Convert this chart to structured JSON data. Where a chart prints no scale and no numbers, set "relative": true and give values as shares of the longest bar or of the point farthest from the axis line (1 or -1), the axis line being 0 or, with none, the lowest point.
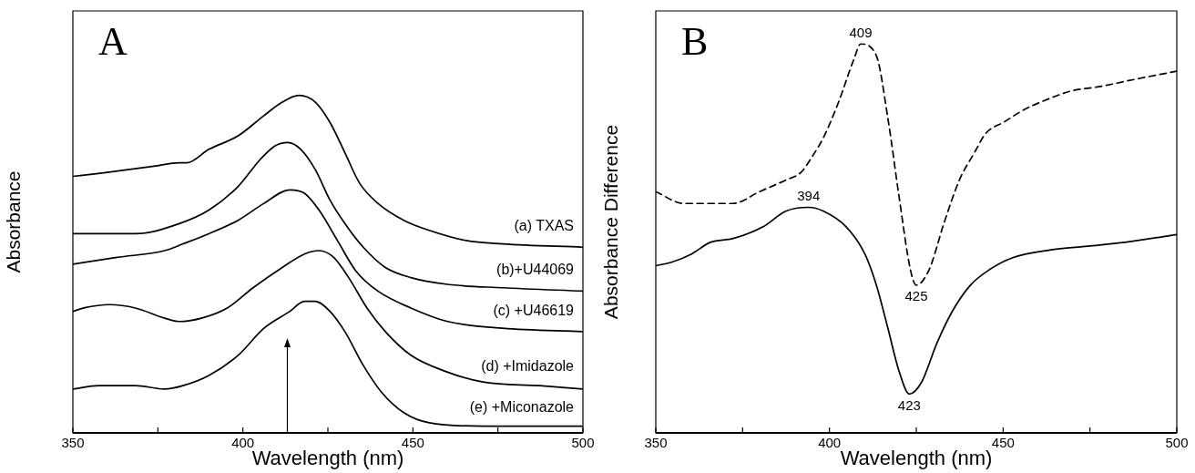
{
  "chart_data": [
    {
      "type": "line",
      "title": "A",
      "xlabel": "Wavelength (nm)",
      "ylabel": "Absorbance",
      "relative": true,
      "xlim": [
        350,
        500
      ],
      "xticks": [
        350,
        {
          "value": 375,
          "label": null
        },
        400,
        {
          "value": 425,
          "label": null
        },
        450,
        {
          "value": 475,
          "label": null
        },
        500
      ],
      "grid": false,
      "legend": false,
      "marker": "none",
      "line_style": "solid",
      "ref_lines": [
        {
          "axis": "x",
          "value": 413
        }
      ],
      "series": [
        {
          "name": "(a) TXAS",
          "color": "#000000",
          "x": [
            350,
            358.6,
            373.8,
            381.3,
            383.5,
            390,
            398.6,
            406.2,
            411.6,
            416.5,
            421.3,
            425.6,
            430,
            434.3,
            439.7,
            447.3,
            454.8,
            465.6,
            476.4,
            500
          ],
          "values": [
            0.76,
            0.77,
            0.79,
            0.8,
            0.8,
            0.84,
            0.88,
            0.94,
            0.98,
            1,
            0.98,
            0.92,
            0.83,
            0.74,
            0.68,
            0.63,
            0.6,
            0.57,
            0.56,
            0.55
          ]
        },
        {
          "name": "(b)+U44069",
          "color": "#000000",
          "x": [
            350,
            368.4,
            381.3,
            390,
            398.6,
            405.1,
            409.4,
            413.2,
            417,
            421.3,
            425.6,
            430,
            435.4,
            441.9,
            449.4,
            460.2,
            476.4,
            500
          ],
          "values": [
            0.59,
            0.59,
            0.62,
            0.66,
            0.73,
            0.81,
            0.85,
            0.86,
            0.84,
            0.78,
            0.69,
            0.62,
            0.55,
            0.49,
            0.46,
            0.44,
            0.43,
            0.42
          ]
        },
        {
          "name": "(c) +U46619",
          "color": "#000000",
          "x": [
            350,
            363,
            377,
            382.4,
            390,
            398.6,
            406.2,
            413.8,
            418.1,
            422.4,
            427.8,
            433.2,
            439.7,
            449.4,
            460.2,
            476.4,
            500
          ],
          "values": [
            0.5,
            0.52,
            0.54,
            0.56,
            0.59,
            0.63,
            0.68,
            0.72,
            0.71,
            0.66,
            0.57,
            0.48,
            0.42,
            0.37,
            0.33,
            0.31,
            0.3
          ]
        },
        {
          "name": "(d) +Imidazole",
          "color": "#000000",
          "x": [
            350,
            353.2,
            360.8,
            368.4,
            377,
            381.3,
            387.8,
            395.4,
            403,
            411.6,
            418.1,
            422.4,
            426.7,
            431.1,
            436.5,
            441.9,
            449.4,
            460.2,
            471,
            487.3,
            500
          ],
          "values": [
            0.36,
            0.37,
            0.38,
            0.37,
            0.34,
            0.33,
            0.34,
            0.37,
            0.43,
            0.49,
            0.53,
            0.54,
            0.52,
            0.46,
            0.37,
            0.3,
            0.23,
            0.18,
            0.15,
            0.14,
            0.13
          ]
        },
        {
          "name": "(e) +Miconazole",
          "color": "#000000",
          "x": [
            350,
            357.6,
            368.4,
            377,
            382.4,
            390,
            398.6,
            406.2,
            413.8,
            418.1,
            421.3,
            425.6,
            430,
            435.4,
            440.8,
            447.3,
            454.8,
            471,
            487.3,
            500
          ],
          "values": [
            0.13,
            0.14,
            0.14,
            0.13,
            0.14,
            0.17,
            0.23,
            0.31,
            0.36,
            0.39,
            0.39,
            0.36,
            0.3,
            0.2,
            0.12,
            0.06,
            0.03,
            0.02,
            0.02,
            0.02
          ]
        }
      ]
    },
    {
      "type": "line",
      "title": "B",
      "xlabel": "Wavelength (nm)",
      "ylabel": "Absorbance Difference",
      "relative": true,
      "xlim": [
        350,
        500
      ],
      "xticks": [
        350,
        {
          "value": 375,
          "label": null
        },
        400,
        {
          "value": 425,
          "label": null
        },
        450,
        {
          "value": 475,
          "label": null
        },
        500
      ],
      "grid": false,
      "legend": false,
      "marker": "none",
      "annotations": [
        {
          "text": "409",
          "x": 409,
          "y": 1
        },
        {
          "text": "394",
          "x": 394,
          "y": 0.58
        },
        {
          "text": "425",
          "x": 425,
          "y": 0.38
        },
        {
          "text": "423",
          "x": 423,
          "y": 0.1
        }
      ],
      "series": [
        {
          "color": "#000000",
          "line_style": "dashed",
          "x": [
            350,
            358.1,
            365.7,
            372.3,
            379.8,
            387.4,
            391.8,
            395,
            398.3,
            402.6,
            407,
            409,
            413.5,
            416.8,
            420,
            423.3,
            425,
            428.7,
            433,
            437.4,
            441.7,
            445,
            450.4,
            455.8,
            463.4,
            469.9,
            477.5,
            488.4,
            500
          ],
          "values": [
            0.62,
            0.59,
            0.59,
            0.59,
            0.62,
            0.65,
            0.67,
            0.71,
            0.76,
            0.85,
            0.96,
            1,
            0.97,
            0.81,
            0.61,
            0.42,
            0.38,
            0.42,
            0.54,
            0.65,
            0.72,
            0.77,
            0.8,
            0.83,
            0.86,
            0.88,
            0.89,
            0.91,
            0.93
          ]
        },
        {
          "color": "#000000",
          "line_style": "solid",
          "x": [
            350,
            354.9,
            360.3,
            365.7,
            372.3,
            380.9,
            387.4,
            394,
            398.3,
            404.8,
            410.2,
            413.5,
            416.8,
            420,
            423,
            426.5,
            430.9,
            435.2,
            440.6,
            446.1,
            452.6,
            463.4,
            474.3,
            485.1,
            500
          ],
          "values": [
            0.43,
            0.44,
            0.46,
            0.49,
            0.5,
            0.53,
            0.57,
            0.58,
            0.57,
            0.53,
            0.46,
            0.38,
            0.27,
            0.16,
            0.1,
            0.13,
            0.23,
            0.31,
            0.38,
            0.42,
            0.45,
            0.47,
            0.48,
            0.49,
            0.51
          ]
        }
      ]
    }
  ]
}
